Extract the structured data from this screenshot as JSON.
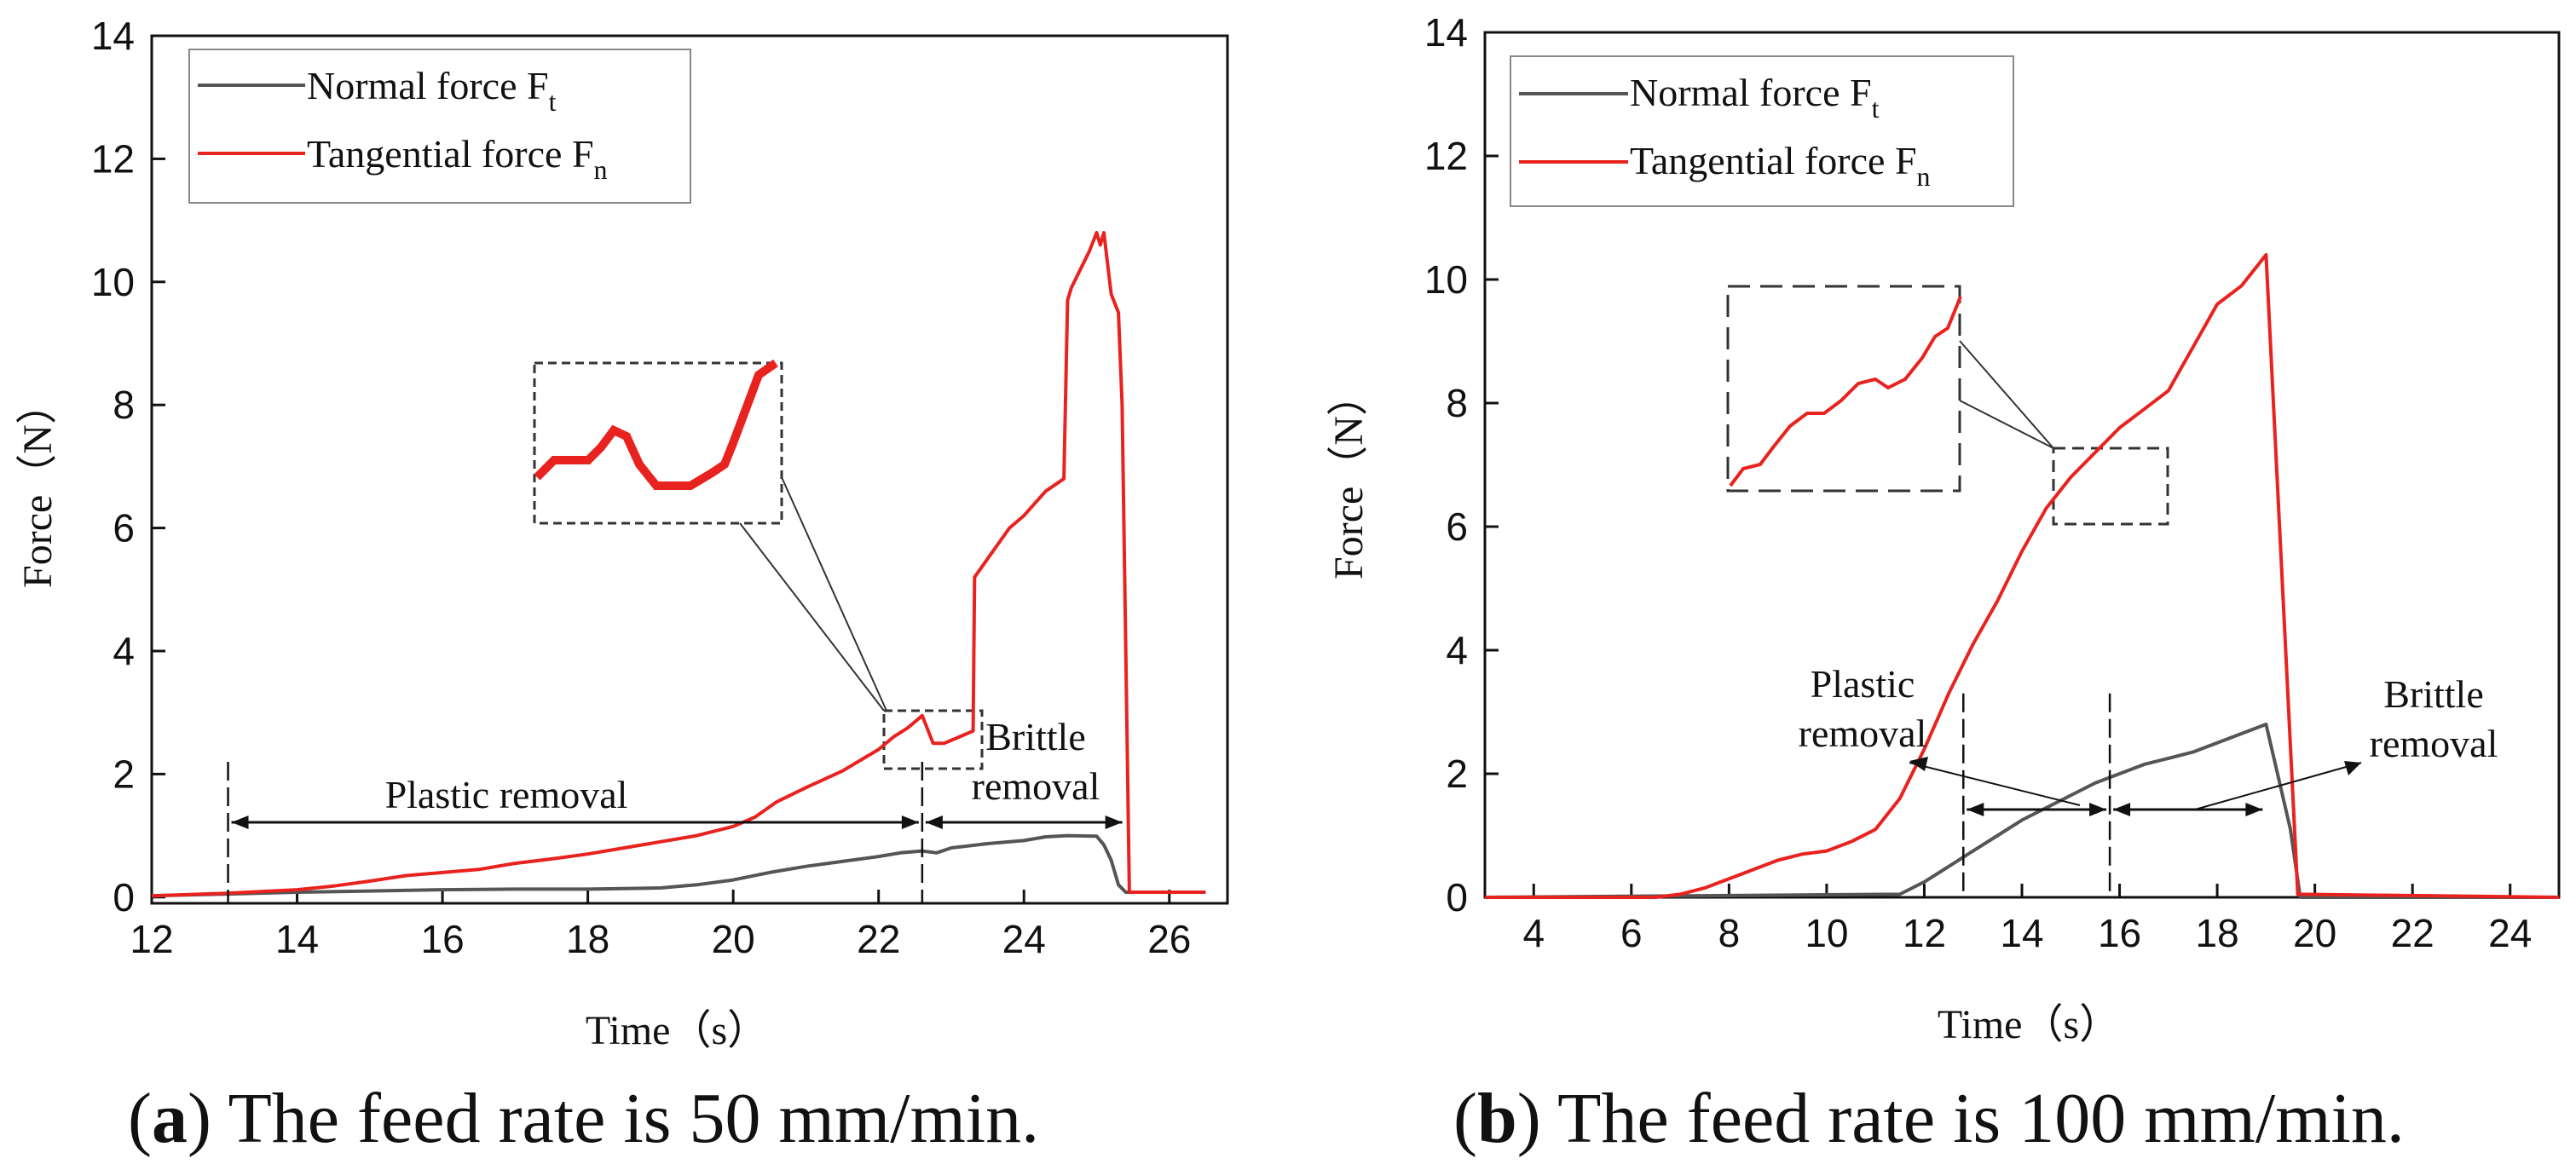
{
  "captions": [
    {
      "letter": "a",
      "text": " The feed rate is 50 mm/min."
    },
    {
      "letter": "b",
      "text": " The feed rate is 100 mm/min."
    }
  ],
  "colors": {
    "normal": "#555555",
    "tangential": "#e8231f",
    "axis": "#111111"
  },
  "chart_data": [
    {
      "type": "line",
      "panel": "a",
      "xlabel": "Time（s）",
      "ylabel": "Force（N）",
      "xlim": [
        12,
        26.8
      ],
      "ylim": [
        -0.1,
        14
      ],
      "xticks": [
        12,
        14,
        16,
        18,
        20,
        22,
        24,
        26
      ],
      "yticks": [
        0,
        2,
        4,
        6,
        8,
        10,
        12,
        14
      ],
      "legend_position": "top-left",
      "series": [
        {
          "name": "Normal force F",
          "sub": "t",
          "color": "#555555",
          "x": [
            12,
            13,
            14,
            15,
            16,
            17,
            18,
            19,
            19.5,
            20,
            20.5,
            21,
            21.5,
            22,
            22.3,
            22.6,
            22.8,
            23,
            23.5,
            24,
            24.3,
            24.6,
            25,
            25.1,
            25.2,
            25.3,
            25.4,
            26.5
          ],
          "y": [
            0.02,
            0.05,
            0.08,
            0.1,
            0.12,
            0.13,
            0.13,
            0.15,
            0.2,
            0.28,
            0.4,
            0.5,
            0.58,
            0.66,
            0.72,
            0.75,
            0.72,
            0.8,
            0.87,
            0.92,
            0.98,
            1.0,
            0.99,
            0.85,
            0.6,
            0.2,
            0.08,
            0.08
          ]
        },
        {
          "name": "Tangential force F",
          "sub": "n",
          "color": "#e8231f",
          "x": [
            12,
            13,
            14,
            14.5,
            15,
            15.5,
            16,
            16.5,
            17,
            17.5,
            18,
            18.5,
            19,
            19.5,
            20,
            20.3,
            20.6,
            21,
            21.5,
            22,
            22.2,
            22.4,
            22.6,
            22.75,
            22.9,
            23.1,
            23.3,
            23.32,
            23.5,
            23.8,
            24,
            24.3,
            24.55,
            24.6,
            24.65,
            24.9,
            25,
            25.05,
            25.1,
            25.2,
            25.3,
            25.35,
            25.45,
            26.5
          ],
          "y": [
            0.02,
            0.06,
            0.12,
            0.18,
            0.26,
            0.35,
            0.4,
            0.45,
            0.55,
            0.62,
            0.7,
            0.8,
            0.9,
            1.0,
            1.15,
            1.3,
            1.55,
            1.78,
            2.05,
            2.4,
            2.6,
            2.75,
            2.95,
            2.5,
            2.5,
            2.6,
            2.7,
            5.2,
            5.5,
            6.0,
            6.2,
            6.6,
            6.8,
            9.7,
            9.9,
            10.5,
            10.8,
            10.6,
            10.8,
            9.8,
            9.5,
            8.0,
            0.08,
            0.08
          ]
        }
      ],
      "annotations": [
        {
          "text": "Plastic removal",
          "from": 13.05,
          "to": 22.6
        },
        {
          "text": "Brittle",
          "text2": "removal",
          "from": 22.6,
          "to": 25.4
        }
      ],
      "dividers": [
        13.05,
        22.6
      ]
    },
    {
      "type": "line",
      "panel": "b",
      "xlabel": "Time（s）",
      "ylabel": "Force（N）",
      "xlim": [
        3,
        25
      ],
      "ylim": [
        0,
        14
      ],
      "xticks": [
        4,
        6,
        8,
        10,
        12,
        14,
        16,
        18,
        20,
        22,
        24
      ],
      "yticks": [
        0,
        2,
        4,
        6,
        8,
        10,
        12,
        14
      ],
      "legend_position": "top-left",
      "series": [
        {
          "name": "Normal force F",
          "sub": "t",
          "color": "#555555",
          "x": [
            3,
            11.5,
            12,
            12.5,
            13,
            13.5,
            14,
            14.5,
            15,
            15.5,
            16,
            16.5,
            17,
            17.5,
            18,
            18.5,
            19,
            19.5,
            19.7,
            25
          ],
          "y": [
            0,
            0.05,
            0.25,
            0.5,
            0.75,
            1.0,
            1.25,
            1.45,
            1.65,
            1.85,
            2.0,
            2.15,
            2.25,
            2.35,
            2.5,
            2.65,
            2.8,
            1.1,
            0,
            0
          ]
        },
        {
          "name": "Tangential force F",
          "sub": "n",
          "color": "#e8231f",
          "x": [
            3,
            6.5,
            7,
            7.5,
            8,
            8.5,
            9,
            9.5,
            10,
            10.5,
            11,
            11.5,
            12,
            12.5,
            13,
            13.5,
            14,
            14.5,
            15,
            15.5,
            16,
            16.5,
            17,
            17.5,
            18,
            18.5,
            18.8,
            19,
            19.65,
            25
          ],
          "y": [
            0,
            0,
            0.05,
            0.15,
            0.3,
            0.45,
            0.6,
            0.7,
            0.75,
            0.9,
            1.1,
            1.6,
            2.4,
            3.3,
            4.1,
            4.8,
            5.6,
            6.3,
            6.8,
            7.2,
            7.6,
            7.9,
            8.2,
            8.9,
            9.6,
            9.9,
            10.2,
            10.4,
            0.05,
            0
          ]
        }
      ],
      "annotations": [
        {
          "text": "Plastic",
          "text2": "removal",
          "from": 12.8,
          "to": 15.8
        },
        {
          "text": "Brittle",
          "text2": "removal",
          "from": 15.8,
          "to": 19.0
        }
      ],
      "dividers": [
        12.8,
        15.8
      ]
    }
  ]
}
